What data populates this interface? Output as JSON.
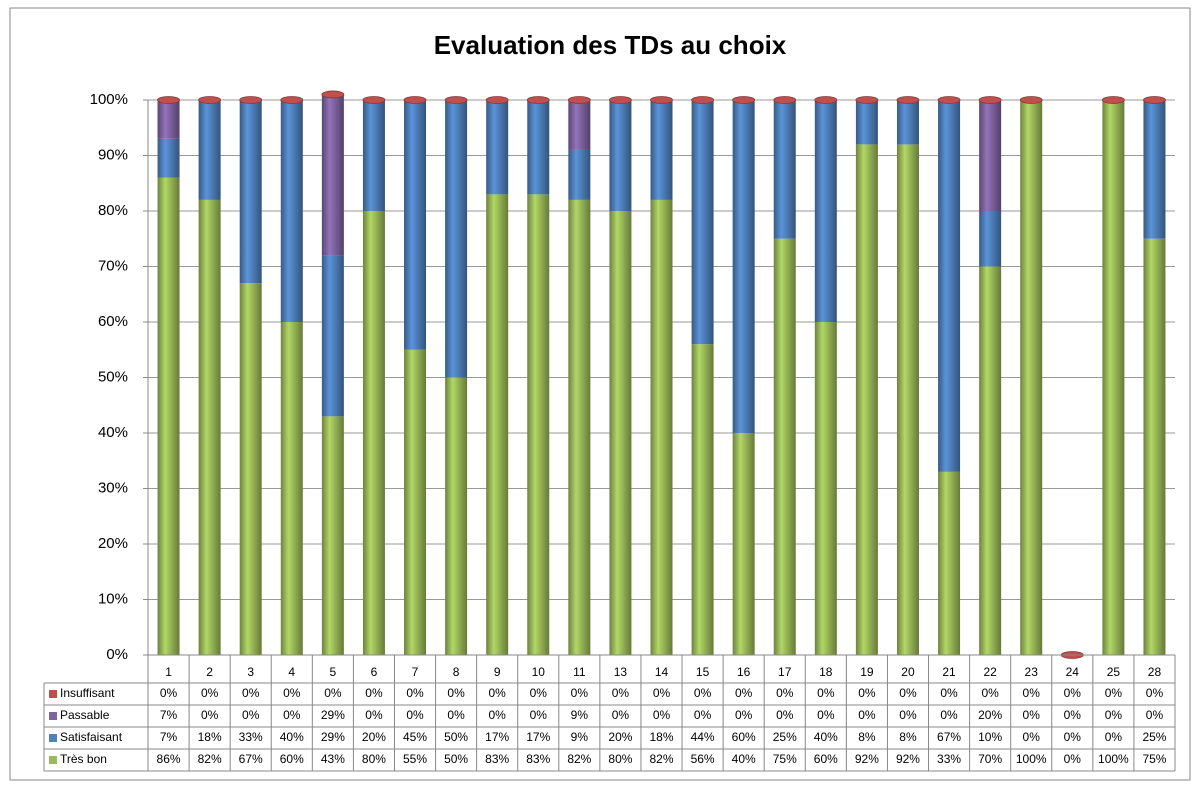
{
  "chart_data": {
    "type": "stacked_bar",
    "title": "Evaluation des TDs au choix",
    "categories": [
      "1",
      "2",
      "3",
      "4",
      "5",
      "6",
      "7",
      "8",
      "9",
      "10",
      "11",
      "13",
      "14",
      "15",
      "16",
      "17",
      "18",
      "19",
      "20",
      "21",
      "22",
      "23",
      "24",
      "25",
      "28"
    ],
    "series": [
      {
        "name": "Insuffisant",
        "color": "#c0504d",
        "values": [
          0,
          0,
          0,
          0,
          0,
          0,
          0,
          0,
          0,
          0,
          0,
          0,
          0,
          0,
          0,
          0,
          0,
          0,
          0,
          0,
          0,
          0,
          0,
          0,
          0
        ],
        "value_labels": [
          "0%",
          "0%",
          "0%",
          "0%",
          "0%",
          "0%",
          "0%",
          "0%",
          "0%",
          "0%",
          "0%",
          "0%",
          "0%",
          "0%",
          "0%",
          "0%",
          "0%",
          "0%",
          "0%",
          "0%",
          "0%",
          "0%",
          "0%",
          "0%",
          "0%"
        ]
      },
      {
        "name": "Passable",
        "color": "#8064a2",
        "values": [
          7,
          0,
          0,
          0,
          29,
          0,
          0,
          0,
          0,
          0,
          9,
          0,
          0,
          0,
          0,
          0,
          0,
          0,
          0,
          0,
          20,
          0,
          0,
          0,
          0
        ],
        "value_labels": [
          "7%",
          "0%",
          "0%",
          "0%",
          "29%",
          "0%",
          "0%",
          "0%",
          "0%",
          "0%",
          "9%",
          "0%",
          "0%",
          "0%",
          "0%",
          "0%",
          "0%",
          "0%",
          "0%",
          "0%",
          "20%",
          "0%",
          "0%",
          "0%",
          "0%"
        ]
      },
      {
        "name": "Satisfaisant",
        "color": "#4f81bd",
        "values": [
          7,
          18,
          33,
          40,
          29,
          20,
          45,
          50,
          17,
          17,
          9,
          20,
          18,
          44,
          60,
          25,
          40,
          8,
          8,
          67,
          10,
          0,
          0,
          0,
          25
        ],
        "value_labels": [
          "7%",
          "18%",
          "33%",
          "40%",
          "29%",
          "20%",
          "45%",
          "50%",
          "17%",
          "17%",
          "9%",
          "20%",
          "18%",
          "44%",
          "60%",
          "25%",
          "40%",
          "8%",
          "8%",
          "67%",
          "10%",
          "0%",
          "0%",
          "0%",
          "25%"
        ]
      },
      {
        "name": "Très bon",
        "color": "#9bbb59",
        "values": [
          86,
          82,
          67,
          60,
          43,
          80,
          55,
          50,
          83,
          83,
          82,
          80,
          82,
          56,
          40,
          75,
          60,
          92,
          92,
          33,
          70,
          100,
          0,
          100,
          75
        ],
        "value_labels": [
          "86%",
          "82%",
          "67%",
          "60%",
          "43%",
          "80%",
          "55%",
          "50%",
          "83%",
          "83%",
          "82%",
          "80%",
          "82%",
          "56%",
          "40%",
          "75%",
          "60%",
          "92%",
          "92%",
          "33%",
          "70%",
          "100%",
          "0%",
          "100%",
          "75%"
        ]
      }
    ],
    "ylim": [
      0,
      100
    ],
    "yticks": [
      {
        "value": 0,
        "label": "0%"
      },
      {
        "value": 10,
        "label": "10%"
      },
      {
        "value": 20,
        "label": "20%"
      },
      {
        "value": 30,
        "label": "30%"
      },
      {
        "value": 40,
        "label": "40%"
      },
      {
        "value": 50,
        "label": "50%"
      },
      {
        "value": 60,
        "label": "60%"
      },
      {
        "value": 70,
        "label": "70%"
      },
      {
        "value": 80,
        "label": "80%"
      },
      {
        "value": 90,
        "label": "90%"
      },
      {
        "value": 100,
        "label": "100%"
      }
    ],
    "grid": true
  }
}
